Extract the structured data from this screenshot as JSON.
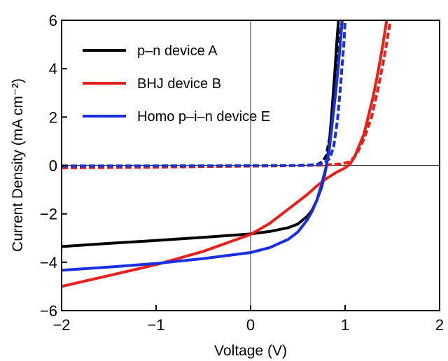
{
  "chart_data": {
    "type": "line",
    "xlabel": "Voltage (V)",
    "ylabel": "Current Density (mA cm⁻²)",
    "xlim": [
      -2,
      2
    ],
    "ylim": [
      -6,
      6
    ],
    "x_ticks": [
      "−2",
      "−1",
      "0",
      "1",
      "2"
    ],
    "y_ticks": [
      "−6",
      "−4",
      "−2",
      "0",
      "2",
      "4",
      "6"
    ],
    "zero_lines": true,
    "legend": {
      "placement": "top-left",
      "entries": [
        "p–n device A",
        "BHJ device B",
        "Homo p–i–n device E"
      ]
    },
    "series": [
      {
        "name": "p–n device A",
        "color": "#000000",
        "style": "solid",
        "x": [
          -2.0,
          -1.5,
          -1.0,
          -0.5,
          0.0,
          0.2,
          0.4,
          0.5,
          0.6,
          0.65,
          0.7,
          0.75,
          0.78,
          0.8,
          0.83,
          0.86,
          0.89,
          0.91,
          0.93
        ],
        "y": [
          -3.35,
          -3.22,
          -3.1,
          -2.97,
          -2.83,
          -2.73,
          -2.57,
          -2.42,
          -2.1,
          -1.85,
          -1.45,
          -0.9,
          -0.45,
          -0.05,
          0.8,
          2.2,
          3.8,
          5.0,
          6.0
        ]
      },
      {
        "name": "p–n device A (dark)",
        "color": "#000000",
        "style": "dashed",
        "x": [
          -2.0,
          -1.0,
          0.0,
          0.5,
          0.7,
          0.76,
          0.8,
          0.84,
          0.88,
          0.91,
          0.94,
          0.97
        ],
        "y": [
          -0.02,
          -0.02,
          -0.01,
          0.0,
          0.03,
          0.15,
          0.4,
          1.2,
          2.6,
          4.0,
          5.2,
          6.0
        ]
      },
      {
        "name": "BHJ device B",
        "color": "#e8201c",
        "style": "solid",
        "x": [
          -2.0,
          -1.5,
          -1.0,
          -0.5,
          0.0,
          0.2,
          0.4,
          0.6,
          0.7,
          0.8,
          0.9,
          1.0,
          1.05,
          1.1,
          1.2,
          1.3,
          1.35,
          1.4,
          1.44
        ],
        "y": [
          -5.0,
          -4.55,
          -4.1,
          -3.55,
          -2.85,
          -2.4,
          -1.8,
          -1.2,
          -0.85,
          -0.55,
          -0.3,
          -0.1,
          0.05,
          0.35,
          1.3,
          2.9,
          3.9,
          5.0,
          6.0
        ]
      },
      {
        "name": "BHJ device B (dark)",
        "color": "#e8201c",
        "style": "dashed",
        "x": [
          -2.0,
          -1.0,
          0.0,
          0.5,
          0.8,
          0.95,
          1.05,
          1.12,
          1.2,
          1.28,
          1.35,
          1.42,
          1.48
        ],
        "y": [
          -0.1,
          -0.07,
          -0.03,
          -0.01,
          0.02,
          0.06,
          0.15,
          0.45,
          1.1,
          2.0,
          3.2,
          4.6,
          6.0
        ]
      },
      {
        "name": "Homo p–i–n device E",
        "color": "#1a2fe0",
        "style": "solid",
        "x": [
          -2.0,
          -1.5,
          -1.0,
          -0.5,
          0.0,
          0.2,
          0.4,
          0.5,
          0.6,
          0.65,
          0.7,
          0.75,
          0.8,
          0.83,
          0.86,
          0.9,
          0.93,
          0.95,
          0.97
        ],
        "y": [
          -4.33,
          -4.2,
          -4.05,
          -3.85,
          -3.6,
          -3.4,
          -3.05,
          -2.75,
          -2.25,
          -1.9,
          -1.45,
          -0.8,
          -0.05,
          0.6,
          1.6,
          3.0,
          4.2,
          5.1,
          6.0
        ]
      },
      {
        "name": "Homo p–i–n device E (dark)",
        "color": "#1a2fe0",
        "style": "dashed",
        "x": [
          -2.0,
          -1.0,
          0.0,
          0.5,
          0.7,
          0.78,
          0.84,
          0.88,
          0.92,
          0.95,
          0.97,
          0.99,
          1.0
        ],
        "y": [
          -0.03,
          -0.02,
          -0.01,
          0.0,
          0.03,
          0.1,
          0.3,
          0.8,
          1.9,
          3.2,
          4.2,
          5.2,
          6.0
        ]
      }
    ]
  }
}
